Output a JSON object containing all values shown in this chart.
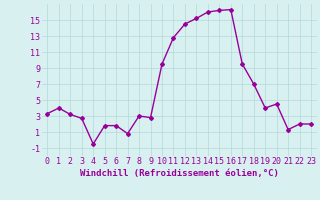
{
  "x": [
    0,
    1,
    2,
    3,
    4,
    5,
    6,
    7,
    8,
    9,
    10,
    11,
    12,
    13,
    14,
    15,
    16,
    17,
    18,
    19,
    20,
    21,
    22,
    23
  ],
  "y": [
    3.3,
    4.0,
    3.2,
    2.7,
    -0.5,
    1.8,
    1.8,
    0.8,
    3.0,
    2.8,
    9.5,
    12.8,
    14.5,
    15.2,
    16.0,
    16.2,
    16.3,
    9.5,
    7.0,
    4.0,
    4.5,
    1.3,
    2.0,
    2.0
  ],
  "line_color": "#990099",
  "marker": "D",
  "marker_size": 2,
  "bg_color": "#d8f0f0",
  "grid_color": "#b0d8d8",
  "xlabel": "Windchill (Refroidissement éolien,°C)",
  "xlabel_color": "#990099",
  "tick_color": "#990099",
  "ylim": [
    -2,
    17
  ],
  "xlim": [
    -0.5,
    23.5
  ],
  "yticks": [
    -1,
    1,
    3,
    5,
    7,
    9,
    11,
    13,
    15
  ],
  "xticks": [
    0,
    1,
    2,
    3,
    4,
    5,
    6,
    7,
    8,
    9,
    10,
    11,
    12,
    13,
    14,
    15,
    16,
    17,
    18,
    19,
    20,
    21,
    22,
    23
  ],
  "linewidth": 1.0,
  "font_size": 6.0,
  "xlabel_fontsize": 6.5
}
